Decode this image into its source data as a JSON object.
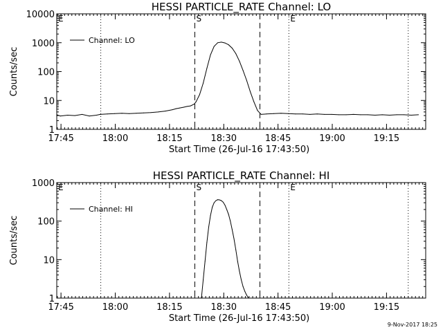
{
  "footer_text": "9-Nov-2017 18:25",
  "chart_data": [
    {
      "type": "line",
      "title": "HESSI PARTICLE_RATE Channel: LO",
      "xlabel": "Start Time (26-Jul-16 17:43:50)",
      "ylabel": "Counts/sec",
      "yscale": "log",
      "ylim": [
        1,
        10000
      ],
      "yticks": [
        1,
        10,
        100,
        1000,
        10000
      ],
      "ytick_labels": [
        "1",
        "10",
        "100",
        "1000",
        "10000"
      ],
      "xlim_min": [
        0,
        102
      ],
      "xticks_min": [
        1.17,
        16.17,
        31.17,
        46.17,
        61.17,
        76.17,
        91.17
      ],
      "xtick_labels": [
        "17:45",
        "18:00",
        "18:15",
        "18:30",
        "18:45",
        "19:00",
        "19:15"
      ],
      "legend": {
        "label": "Channel: LO",
        "position": "top-left"
      },
      "markers": [
        {
          "label": "E",
          "x_min": 0.0,
          "style": "dotted"
        },
        {
          "label": "",
          "x_min": 12.17,
          "style": "dotted"
        },
        {
          "label": "S",
          "x_min": 38.17,
          "style": "dashed"
        },
        {
          "label": "",
          "x_min": 56.17,
          "style": "dashed"
        },
        {
          "label": "E",
          "x_min": 64.17,
          "style": "dotted"
        },
        {
          "label": "",
          "x_min": 97.17,
          "style": "dotted"
        }
      ],
      "series": [
        {
          "x": [
            0,
            1,
            3,
            5,
            7,
            9,
            11,
            12,
            14,
            16,
            18,
            20,
            22,
            24,
            26,
            28,
            30,
            32,
            33,
            34,
            35,
            36,
            37,
            38,
            38.5,
            39.5,
            40.5,
            41.5,
            42.5,
            43.5,
            44.5,
            45.5,
            46.5,
            47.5,
            48.5,
            49.5,
            50.5,
            51.5,
            52.5,
            53.5,
            54.5,
            55.5,
            56.5,
            58,
            60,
            62,
            64,
            66,
            68,
            70,
            72,
            74,
            76,
            78,
            80,
            82,
            84,
            86,
            88,
            90,
            92,
            94,
            96,
            98,
            100
          ],
          "y": [
            3.2,
            2.9,
            3.1,
            3.0,
            3.3,
            2.9,
            3.1,
            3.3,
            3.4,
            3.5,
            3.6,
            3.5,
            3.6,
            3.7,
            3.8,
            4.0,
            4.3,
            4.8,
            5.2,
            5.5,
            5.8,
            6.2,
            6.5,
            7.5,
            9,
            16,
            40,
            130,
            380,
            750,
            1000,
            1050,
            980,
            850,
            650,
            420,
            230,
            110,
            50,
            20,
            9,
            4.5,
            3.3,
            3.4,
            3.5,
            3.6,
            3.5,
            3.4,
            3.4,
            3.3,
            3.4,
            3.3,
            3.3,
            3.2,
            3.2,
            3.3,
            3.2,
            3.2,
            3.1,
            3.2,
            3.1,
            3.2,
            3.2,
            3.1,
            3.2
          ],
          "color": "#000000"
        }
      ]
    },
    {
      "type": "line",
      "title": "HESSI PARTICLE_RATE Channel: HI",
      "xlabel": "Start Time (26-Jul-16 17:43:50)",
      "ylabel": "Counts/sec",
      "yscale": "log",
      "ylim": [
        1,
        1000
      ],
      "yticks": [
        1,
        10,
        100,
        1000
      ],
      "ytick_labels": [
        "1",
        "10",
        "100",
        "1000"
      ],
      "xlim_min": [
        0,
        102
      ],
      "xticks_min": [
        1.17,
        16.17,
        31.17,
        46.17,
        61.17,
        76.17,
        91.17
      ],
      "xtick_labels": [
        "17:45",
        "18:00",
        "18:15",
        "18:30",
        "18:45",
        "19:00",
        "19:15"
      ],
      "legend": {
        "label": "Channel: HI",
        "position": "top-left"
      },
      "markers": [
        {
          "label": "E",
          "x_min": 0.0,
          "style": "dotted"
        },
        {
          "label": "",
          "x_min": 12.17,
          "style": "dotted"
        },
        {
          "label": "S",
          "x_min": 38.17,
          "style": "dashed"
        },
        {
          "label": "",
          "x_min": 56.17,
          "style": "dashed"
        },
        {
          "label": "E",
          "x_min": 64.17,
          "style": "dotted"
        },
        {
          "label": "",
          "x_min": 97.17,
          "style": "dotted"
        }
      ],
      "series": [
        {
          "x": [
            40.0,
            40.5,
            41.0,
            41.5,
            42.0,
            42.5,
            43.0,
            43.5,
            44.0,
            44.5,
            45.0,
            45.5,
            46.0,
            46.5,
            47.0,
            47.5,
            48.0,
            48.5,
            49.0,
            49.5,
            50.0,
            50.5,
            51.0,
            51.5,
            52.0,
            52.5,
            53.0
          ],
          "y": [
            1.0,
            3,
            9,
            28,
            70,
            140,
            230,
            300,
            340,
            360,
            355,
            340,
            310,
            260,
            200,
            150,
            100,
            60,
            35,
            18,
            9,
            5,
            3,
            2,
            1.5,
            1.2,
            1.0
          ],
          "color": "#000000"
        }
      ]
    }
  ]
}
